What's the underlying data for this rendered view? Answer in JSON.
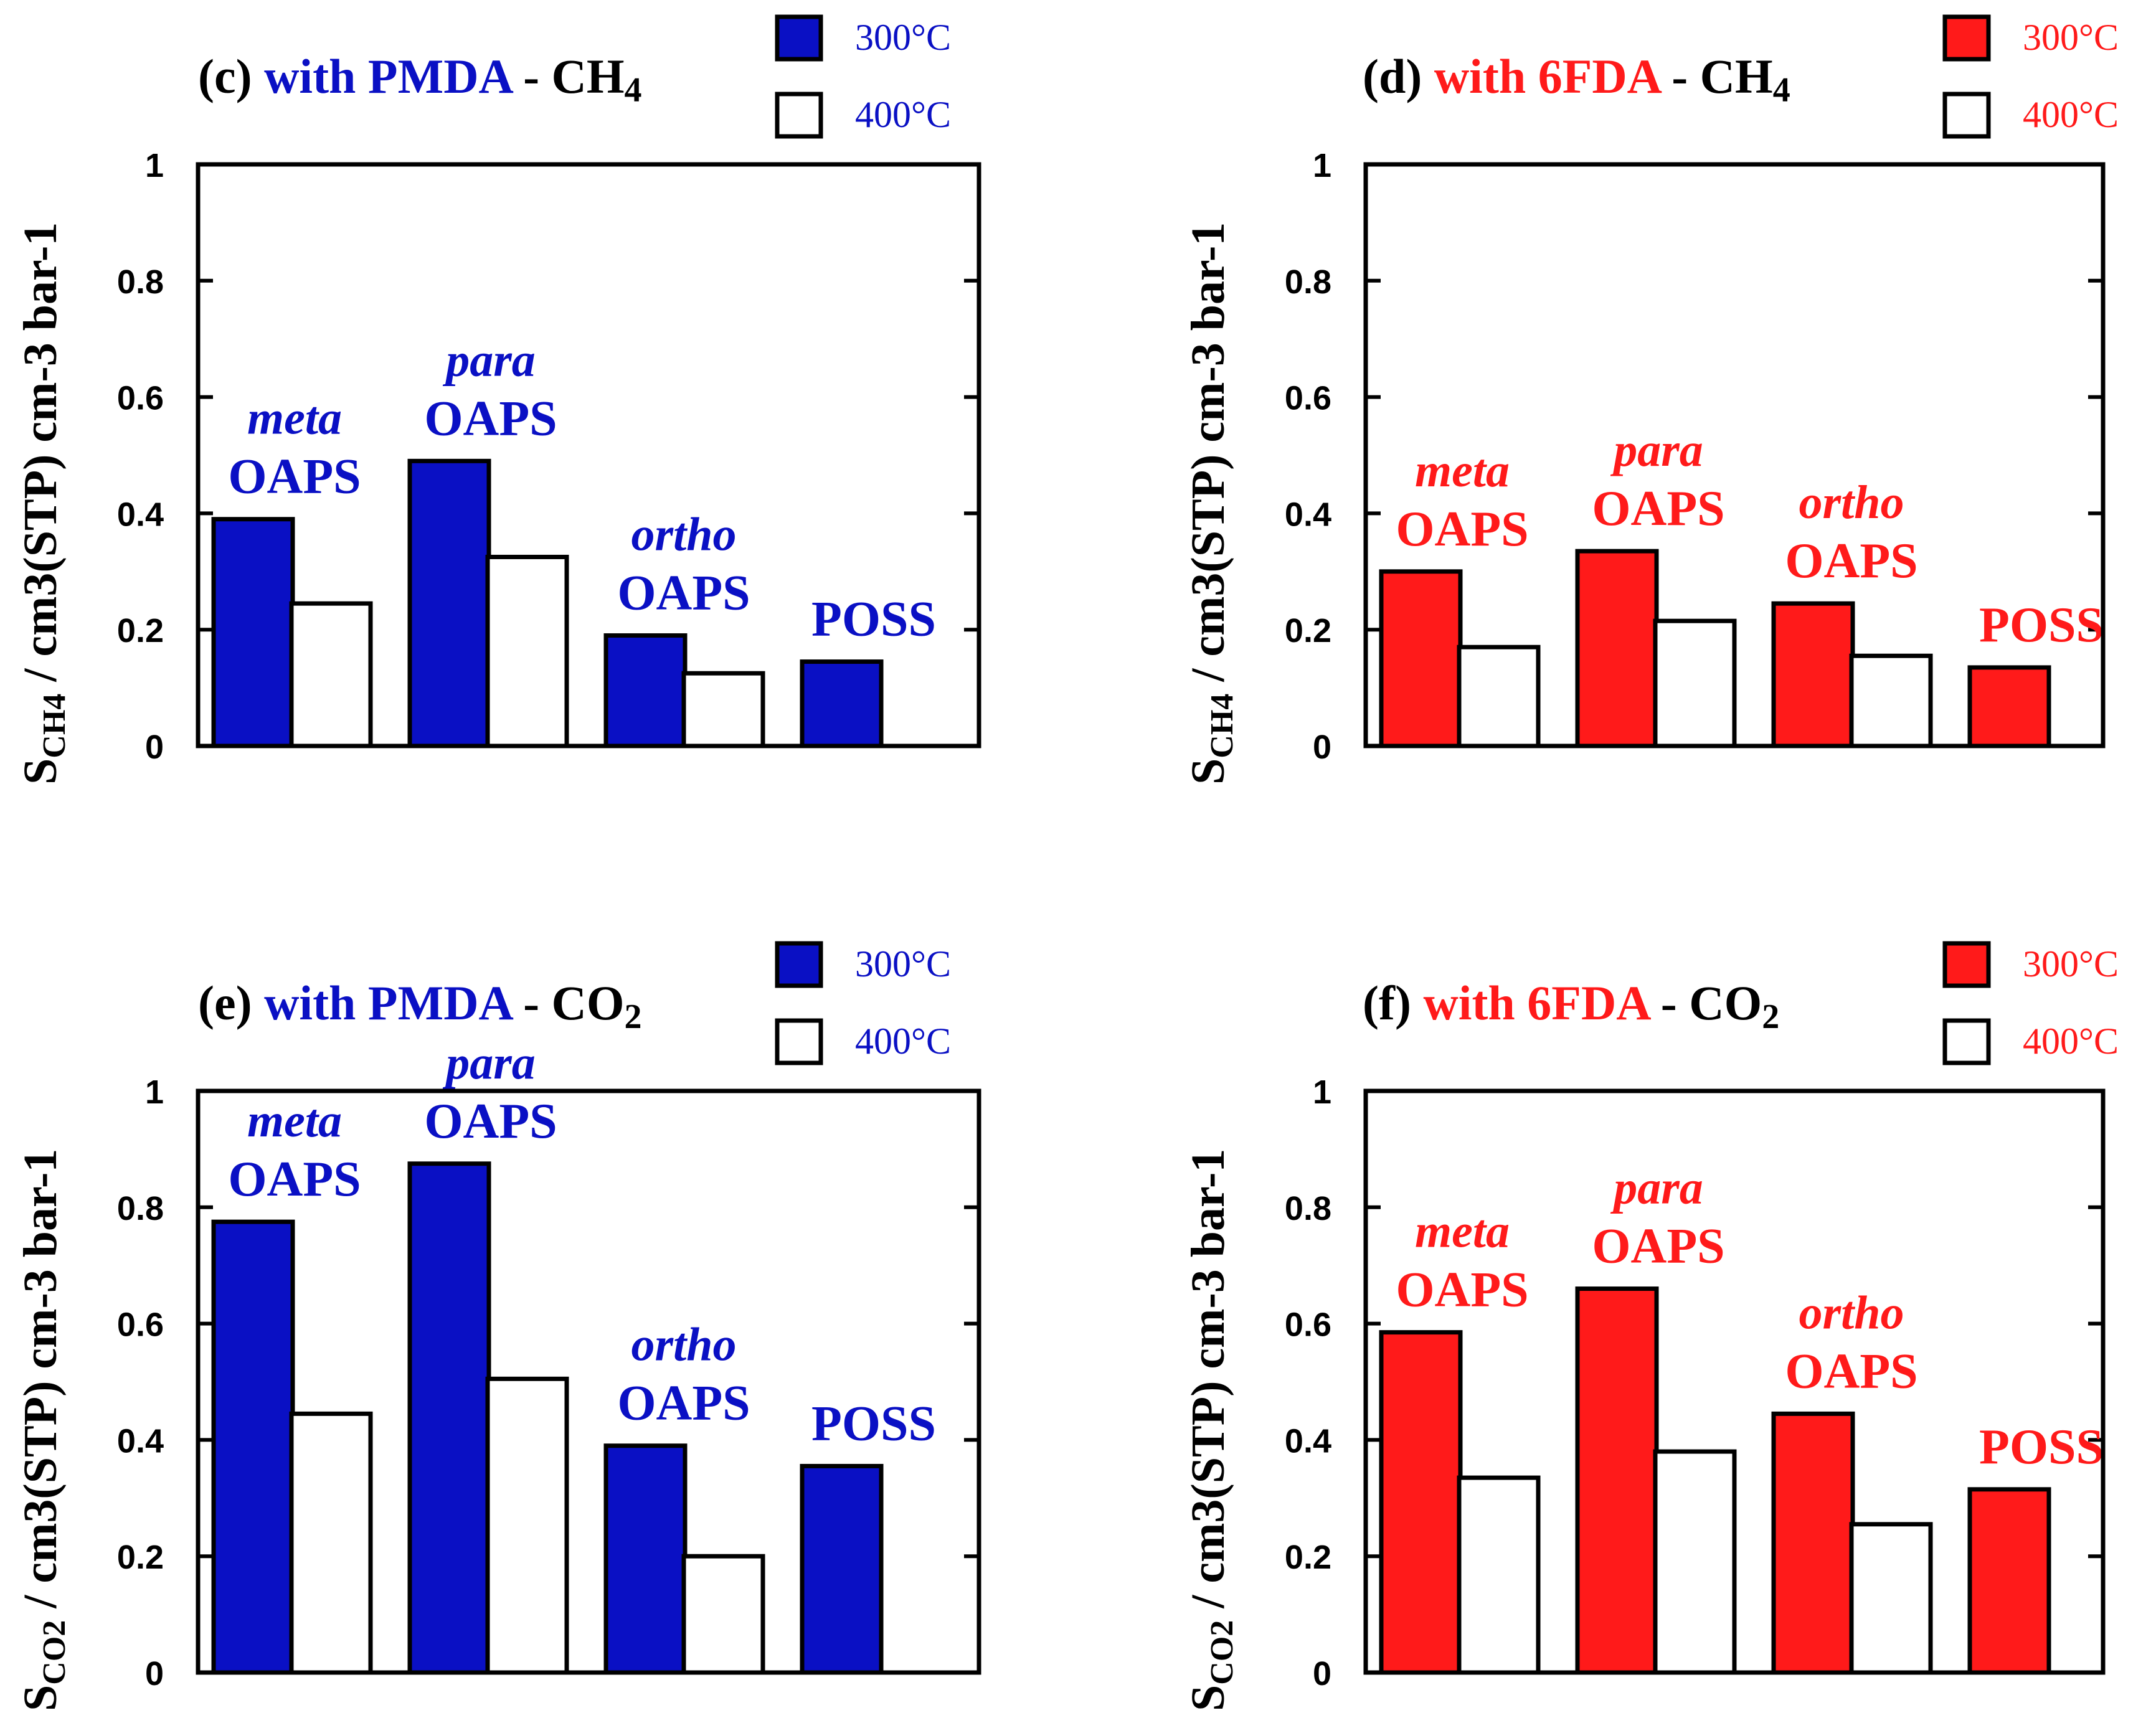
{
  "colors": {
    "blue": "#0a10c4",
    "red": "#ff1a1a",
    "black": "#000000",
    "white": "#ffffff"
  },
  "temps": [
    "300°C",
    "400°C"
  ],
  "charts": [
    {
      "id": "c",
      "tag": "(c)",
      "with": "with",
      "dian": "PMDA",
      "dash": "-",
      "gas_main": "CH",
      "gas_sub": "4",
      "ylabel_s": "S",
      "ylabel_sub": "CH4",
      "ylabel_main": "/ cm3(STP) cm-3 bar-1",
      "accent": "blue",
      "chart_data": {
        "type": "bar",
        "ylim": [
          0,
          1
        ],
        "yticks": [
          "0",
          "0.2",
          "0.4",
          "0.6",
          "0.8",
          "1"
        ],
        "categories": [
          {
            "prefix": "meta",
            "name": "OAPS"
          },
          {
            "prefix": "para",
            "name": "OAPS"
          },
          {
            "prefix": "ortho",
            "name": "OAPS"
          },
          {
            "prefix": "",
            "name": "POSS"
          }
        ],
        "series": [
          {
            "name": "300°C",
            "values": [
              0.39,
              0.49,
              0.19,
              0.145
            ]
          },
          {
            "name": "400°C",
            "values": [
              0.245,
              0.325,
              0.125,
              null
            ]
          }
        ]
      }
    },
    {
      "id": "d",
      "tag": "(d)",
      "with": "with",
      "dian": "6FDA",
      "dash": "-",
      "gas_main": "CH",
      "gas_sub": "4",
      "ylabel_s": "S",
      "ylabel_sub": "CH4",
      "ylabel_main": "/ cm3(STP) cm-3 bar-1",
      "accent": "red",
      "chart_data": {
        "type": "bar",
        "ylim": [
          0,
          1
        ],
        "yticks": [
          "0",
          "0.2",
          "0.4",
          "0.6",
          "0.8",
          "1"
        ],
        "categories": [
          {
            "prefix": "meta",
            "name": "OAPS"
          },
          {
            "prefix": "para",
            "name": "OAPS"
          },
          {
            "prefix": "ortho",
            "name": "OAPS"
          },
          {
            "prefix": "",
            "name": "POSS"
          }
        ],
        "series": [
          {
            "name": "300°C",
            "values": [
              0.3,
              0.335,
              0.245,
              0.135
            ]
          },
          {
            "name": "400°C",
            "values": [
              0.17,
              0.215,
              0.155,
              null
            ]
          }
        ]
      }
    },
    {
      "id": "e",
      "tag": "(e)",
      "with": "with",
      "dian": "PMDA",
      "dash": "-",
      "gas_main": "CO",
      "gas_sub": "2",
      "ylabel_s": "S",
      "ylabel_sub": "CO2",
      "ylabel_main": "/ cm3(STP) cm-3 bar-1",
      "accent": "blue",
      "chart_data": {
        "type": "bar",
        "ylim": [
          0,
          1
        ],
        "yticks": [
          "0",
          "0.2",
          "0.4",
          "0.6",
          "0.8",
          "1"
        ],
        "categories": [
          {
            "prefix": "meta",
            "name": "OAPS"
          },
          {
            "prefix": "para",
            "name": "OAPS"
          },
          {
            "prefix": "ortho",
            "name": "OAPS"
          },
          {
            "prefix": "",
            "name": "POSS"
          }
        ],
        "series": [
          {
            "name": "300°C",
            "values": [
              0.775,
              0.875,
              0.39,
              0.355
            ]
          },
          {
            "name": "400°C",
            "values": [
              0.445,
              0.505,
              0.2,
              null
            ]
          }
        ]
      }
    },
    {
      "id": "f",
      "tag": "(f)",
      "with": "with",
      "dian": "6FDA",
      "dash": "-",
      "gas_main": "CO",
      "gas_sub": "2",
      "ylabel_s": "S",
      "ylabel_sub": "CO2",
      "ylabel_main": "/ cm3(STP) cm-3 bar-1",
      "accent": "red",
      "chart_data": {
        "type": "bar",
        "ylim": [
          0,
          1
        ],
        "yticks": [
          "0",
          "0.2",
          "0.4",
          "0.6",
          "0.8",
          "1"
        ],
        "categories": [
          {
            "prefix": "meta",
            "name": "OAPS"
          },
          {
            "prefix": "para",
            "name": "OAPS"
          },
          {
            "prefix": "ortho",
            "name": "OAPS"
          },
          {
            "prefix": "",
            "name": "POSS"
          }
        ],
        "series": [
          {
            "name": "300°C",
            "values": [
              0.585,
              0.66,
              0.445,
              0.315
            ]
          },
          {
            "name": "400°C",
            "values": [
              0.335,
              0.38,
              0.255,
              null
            ]
          }
        ]
      }
    }
  ]
}
